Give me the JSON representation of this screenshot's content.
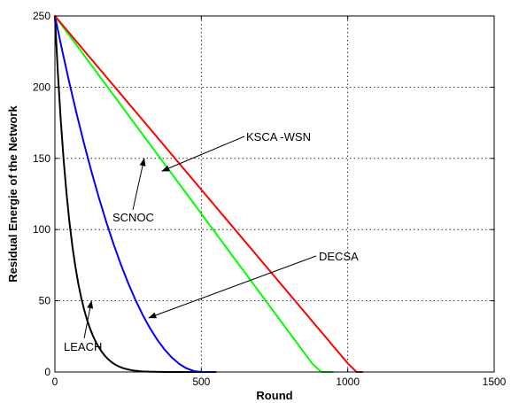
{
  "chart_data": {
    "type": "line",
    "title": "",
    "xlabel": "Round",
    "ylabel": "Residual Energie of the Network",
    "xlim": [
      0,
      1500
    ],
    "ylim": [
      0,
      250
    ],
    "xticks": [
      0,
      500,
      1000,
      1500
    ],
    "yticks": [
      0,
      50,
      100,
      150,
      200,
      250
    ],
    "grid": true,
    "series": [
      {
        "name": "LEACH",
        "color": "#000000",
        "x": [
          0,
          10,
          20,
          30,
          40,
          50,
          60,
          70,
          80,
          90,
          100,
          110,
          120,
          130,
          140,
          150,
          160,
          170,
          180,
          190,
          200,
          210,
          220,
          230,
          240,
          250,
          260,
          270,
          280,
          290,
          300,
          320,
          340,
          360,
          380,
          400,
          420,
          450,
          480,
          500
        ],
        "y": [
          250,
          210.28,
          176.72,
          148.44,
          124.64,
          104.64,
          87.85,
          73.76,
          61.92,
          51.98,
          43.59,
          36.48,
          30.45,
          25.33,
          20.99,
          17.31,
          14.2,
          11.57,
          9.36,
          7.52,
          6.0,
          4.75,
          3.75,
          2.94,
          2.29,
          1.78,
          1.37,
          1.04,
          0.77,
          0.55,
          0.4,
          0.22,
          0.12,
          0.06,
          0.03,
          0.02,
          0.01,
          0.0,
          0.0,
          0.0
        ]
      },
      {
        "name": "SCNOC",
        "color": "#0000ff",
        "x": [
          0,
          25,
          50,
          75,
          100,
          125,
          150,
          175,
          200,
          225,
          250,
          275,
          300,
          325,
          350,
          375,
          400,
          425,
          450,
          475,
          500,
          525,
          550
        ],
        "y": [
          250,
          225.62,
          202.5,
          180.62,
          160.0,
          140.62,
          122.5,
          105.62,
          90.0,
          75.62,
          62.5,
          50.62,
          40.0,
          30.62,
          22.5,
          15.62,
          10.0,
          5.62,
          2.5,
          0.62,
          0.0,
          0.0,
          0.0
        ]
      },
      {
        "name": "DECSA",
        "color": "#00ff00",
        "x": [
          0,
          50,
          100,
          150,
          200,
          250,
          300,
          350,
          400,
          450,
          500,
          550,
          600,
          650,
          700,
          750,
          800,
          850,
          880,
          910,
          950
        ],
        "y": [
          250,
          236.11,
          222.22,
          208.33,
          194.44,
          180.56,
          166.67,
          152.78,
          138.89,
          125.0,
          111.11,
          97.22,
          83.33,
          69.44,
          55.56,
          41.67,
          27.78,
          13.89,
          5.56,
          0.0,
          0.0
        ]
      },
      {
        "name": "KSCA -WSN",
        "color": "#ff0000",
        "x": [
          0,
          50,
          100,
          150,
          200,
          250,
          300,
          350,
          400,
          450,
          500,
          550,
          600,
          650,
          700,
          750,
          800,
          850,
          900,
          950,
          1000,
          1030,
          1050
        ],
        "y": [
          250,
          237.8,
          225.61,
          213.41,
          201.22,
          189.02,
          176.83,
          164.63,
          152.44,
          140.24,
          128.05,
          115.85,
          103.66,
          91.46,
          79.27,
          67.07,
          54.88,
          42.68,
          30.49,
          18.29,
          6.1,
          0.0,
          0.0
        ]
      }
    ],
    "annotations": [
      {
        "text": "KSCA -WSN",
        "arrow_to": [
          365,
          141
        ]
      },
      {
        "text": "SCNOC",
        "arrow_to": [
          305,
          150
        ]
      },
      {
        "text": "DECSA",
        "arrow_to": [
          320,
          38
        ]
      },
      {
        "text": "LEACH",
        "arrow_to": [
          125,
          50
        ]
      }
    ],
    "legend": "none"
  }
}
